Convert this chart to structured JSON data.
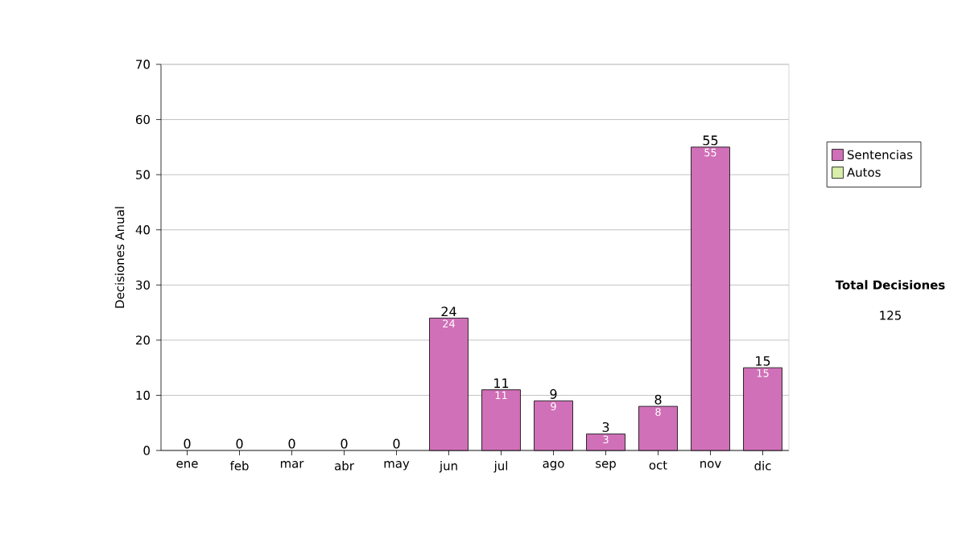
{
  "chart_data": {
    "type": "bar",
    "stacked": true,
    "ylabel": "Decisiones Anual",
    "categories": [
      "ene",
      "feb",
      "mar",
      "abr",
      "may",
      "jun",
      "jul",
      "ago",
      "sep",
      "oct",
      "nov",
      "dic"
    ],
    "series": [
      {
        "name": "Sentencias",
        "color": "#d070b8",
        "values": [
          0,
          0,
          0,
          0,
          0,
          24,
          11,
          9,
          3,
          8,
          55,
          15
        ],
        "value_labels": [
          null,
          null,
          null,
          null,
          null,
          "24",
          "11",
          "9",
          "3",
          "8",
          "55",
          "15"
        ]
      },
      {
        "name": "Autos",
        "color": "#d8eeaa",
        "values": [
          0,
          0,
          0,
          0,
          0,
          0,
          0,
          0,
          0,
          0,
          0,
          0
        ]
      }
    ],
    "totals": [
      "0",
      "0",
      "0",
      "0",
      "0",
      "24",
      "11",
      "9",
      "3",
      "8",
      "55",
      "15"
    ],
    "ylim": [
      0,
      70
    ],
    "yticks": [
      0,
      10,
      20,
      30,
      40,
      50,
      60,
      70
    ],
    "grid": "y",
    "legend": "right",
    "annotations": [
      "Total Decisiones",
      "125"
    ]
  }
}
